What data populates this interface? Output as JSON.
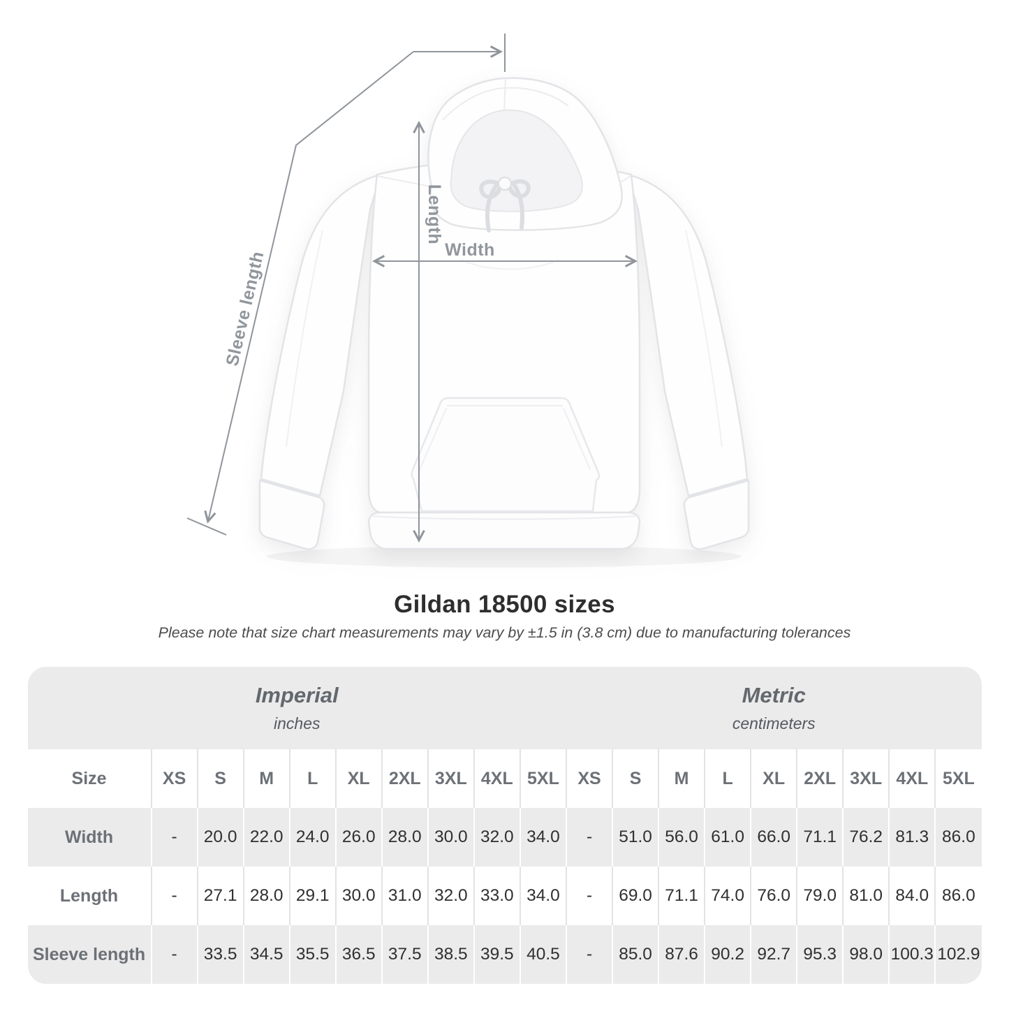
{
  "diagram": {
    "sleeve_label": "Sleeve length",
    "length_label": "Length",
    "width_label": "Width"
  },
  "heading": {
    "title": "Gildan 18500 sizes",
    "note": "Please note that size chart measurements may vary by ±1.5 in (3.8 cm) due to manufacturing tolerances"
  },
  "table": {
    "corner_label": "Size",
    "sections": [
      {
        "name": "Imperial",
        "unit": "inches"
      },
      {
        "name": "Metric",
        "unit": "centimeters"
      }
    ],
    "sizes": [
      "XS",
      "S",
      "M",
      "L",
      "XL",
      "2XL",
      "3XL",
      "4XL",
      "5XL"
    ],
    "rows": [
      {
        "label": "Width",
        "imperial": [
          "-",
          "20.0",
          "22.0",
          "24.0",
          "26.0",
          "28.0",
          "30.0",
          "32.0",
          "34.0"
        ],
        "metric": [
          "-",
          "51.0",
          "56.0",
          "61.0",
          "66.0",
          "71.1",
          "76.2",
          "81.3",
          "86.0"
        ]
      },
      {
        "label": "Length",
        "imperial": [
          "-",
          "27.1",
          "28.0",
          "29.1",
          "30.0",
          "31.0",
          "32.0",
          "33.0",
          "34.0"
        ],
        "metric": [
          "-",
          "69.0",
          "71.1",
          "74.0",
          "76.0",
          "79.0",
          "81.0",
          "84.0",
          "86.0"
        ]
      },
      {
        "label": "Sleeve length",
        "imperial": [
          "-",
          "33.5",
          "34.5",
          "35.5",
          "36.5",
          "37.5",
          "38.5",
          "39.5",
          "40.5"
        ],
        "metric": [
          "-",
          "85.0",
          "87.6",
          "90.2",
          "92.7",
          "95.3",
          "98.0",
          "100.3",
          "102.9"
        ]
      }
    ]
  },
  "colors": {
    "table_band_gray": "#ebebeb",
    "measure_line": "#90969c",
    "header_text": "#6c7177",
    "value_text": "#303030"
  }
}
